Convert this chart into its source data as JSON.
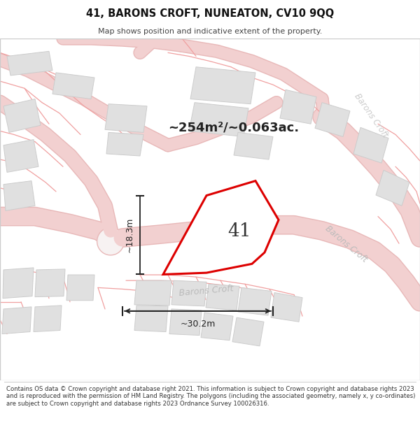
{
  "title_line1": "41, BARONS CROFT, NUNEATON, CV10 9QQ",
  "title_line2": "Map shows position and indicative extent of the property.",
  "footer_text": "Contains OS data © Crown copyright and database right 2021. This information is subject to Crown copyright and database rights 2023 and is reproduced with the permission of HM Land Registry. The polygons (including the associated geometry, namely x, y co-ordinates) are subject to Crown copyright and database rights 2023 Ordnance Survey 100026316.",
  "area_text": "~254m²/~0.063ac.",
  "plot_number": "41",
  "dim_width": "~30.2m",
  "dim_height": "~18.3m",
  "road_label_bottom": "Barons Croft",
  "road_label_right": "Barons Croft",
  "road_label_top_right": "Barons Croft",
  "bg_color": "#ffffff",
  "map_bg": "#f7f2f2",
  "road_fill": "#f2d0d0",
  "road_edge": "#e8b8b8",
  "building_fill": "#e0e0e0",
  "building_edge": "#cccccc",
  "plot_stroke": "#dd0000",
  "plot_fill": "#ffffff",
  "arrow_color": "#222222",
  "text_dark": "#222222",
  "road_text_color": "#bbbbbb"
}
